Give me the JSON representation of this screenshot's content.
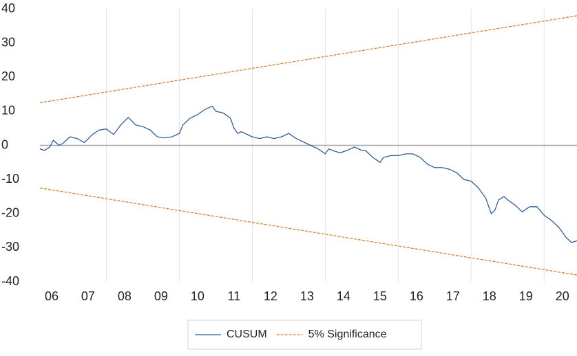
{
  "chart_data": {
    "type": "line",
    "xlim": [
      2006.18,
      2020.9
    ],
    "ylim": [
      -40,
      40
    ],
    "yticks": [
      -40,
      -30,
      -20,
      -10,
      0,
      10,
      20,
      30,
      40
    ],
    "xticks": [
      {
        "value": 2006.5,
        "label": "06"
      },
      {
        "value": 2007.5,
        "label": "07"
      },
      {
        "value": 2008.5,
        "label": "08"
      },
      {
        "value": 2009.5,
        "label": "09"
      },
      {
        "value": 2010.5,
        "label": "10"
      },
      {
        "value": 2011.5,
        "label": "11"
      },
      {
        "value": 2012.5,
        "label": "12"
      },
      {
        "value": 2013.5,
        "label": "13"
      },
      {
        "value": 2014.5,
        "label": "14"
      },
      {
        "value": 2015.5,
        "label": "15"
      },
      {
        "value": 2016.5,
        "label": "16"
      },
      {
        "value": 2017.5,
        "label": "17"
      },
      {
        "value": 2018.5,
        "label": "18"
      },
      {
        "value": 2019.5,
        "label": "19"
      },
      {
        "value": 2020.5,
        "label": "20"
      }
    ],
    "xgrid": [
      2008,
      2010,
      2012,
      2014,
      2016,
      2018,
      2020
    ],
    "legend": "bottom",
    "series": [
      {
        "name": "CUSUM",
        "color": "#2e5c9e",
        "x": [
          2006.18,
          2006.3,
          2006.45,
          2006.55,
          2006.7,
          2006.8,
          2007.0,
          2007.2,
          2007.4,
          2007.6,
          2007.8,
          2008.0,
          2008.2,
          2008.4,
          2008.6,
          2008.8,
          2009.0,
          2009.2,
          2009.4,
          2009.6,
          2009.8,
          2010.0,
          2010.1,
          2010.3,
          2010.5,
          2010.7,
          2010.9,
          2011.0,
          2011.2,
          2011.4,
          2011.5,
          2011.6,
          2011.7,
          2011.9,
          2012.0,
          2012.2,
          2012.4,
          2012.6,
          2012.8,
          2013.0,
          2013.2,
          2013.4,
          2013.6,
          2013.8,
          2014.0,
          2014.1,
          2014.2,
          2014.4,
          2014.6,
          2014.8,
          2015.0,
          2015.1,
          2015.3,
          2015.5,
          2015.6,
          2015.8,
          2016.0,
          2016.2,
          2016.4,
          2016.6,
          2016.8,
          2017.0,
          2017.2,
          2017.4,
          2017.6,
          2017.8,
          2018.0,
          2018.2,
          2018.4,
          2018.55,
          2018.65,
          2018.75,
          2018.9,
          2019.0,
          2019.2,
          2019.4,
          2019.6,
          2019.8,
          2020.0,
          2020.2,
          2020.4,
          2020.6,
          2020.75,
          2020.9
        ],
        "values": [
          -1,
          -1.5,
          -0.5,
          1.5,
          0,
          0.5,
          2.5,
          2,
          0.8,
          3,
          4.5,
          4.8,
          3.2,
          6,
          8.2,
          6,
          5.5,
          4.5,
          2.5,
          2.2,
          2.5,
          3.5,
          6,
          8,
          9,
          10.5,
          11.5,
          10,
          9.5,
          8,
          5,
          3.5,
          4,
          3,
          2.5,
          2,
          2.5,
          2,
          2.5,
          3.5,
          2,
          1,
          0,
          -1,
          -2.5,
          -1,
          -1.5,
          -2.2,
          -1.5,
          -0.5,
          -1.5,
          -1.5,
          -3.5,
          -5,
          -3.5,
          -3,
          -3,
          -2.5,
          -2.5,
          -3.5,
          -5.5,
          -6.5,
          -6.5,
          -7,
          -8,
          -10,
          -10.5,
          -12.5,
          -15.5,
          -20,
          -19,
          -16,
          -15,
          -16,
          -17.5,
          -19.5,
          -18,
          -18,
          -20.5,
          -22,
          -24,
          -27,
          -28.5,
          -28
        ]
      },
      {
        "name": "5% Significance",
        "color": "#e07b2a",
        "x": [
          2006.18,
          2020.9
        ],
        "values": [
          12.5,
          38
        ],
        "lower": [
          -12.5,
          -38
        ]
      }
    ]
  }
}
